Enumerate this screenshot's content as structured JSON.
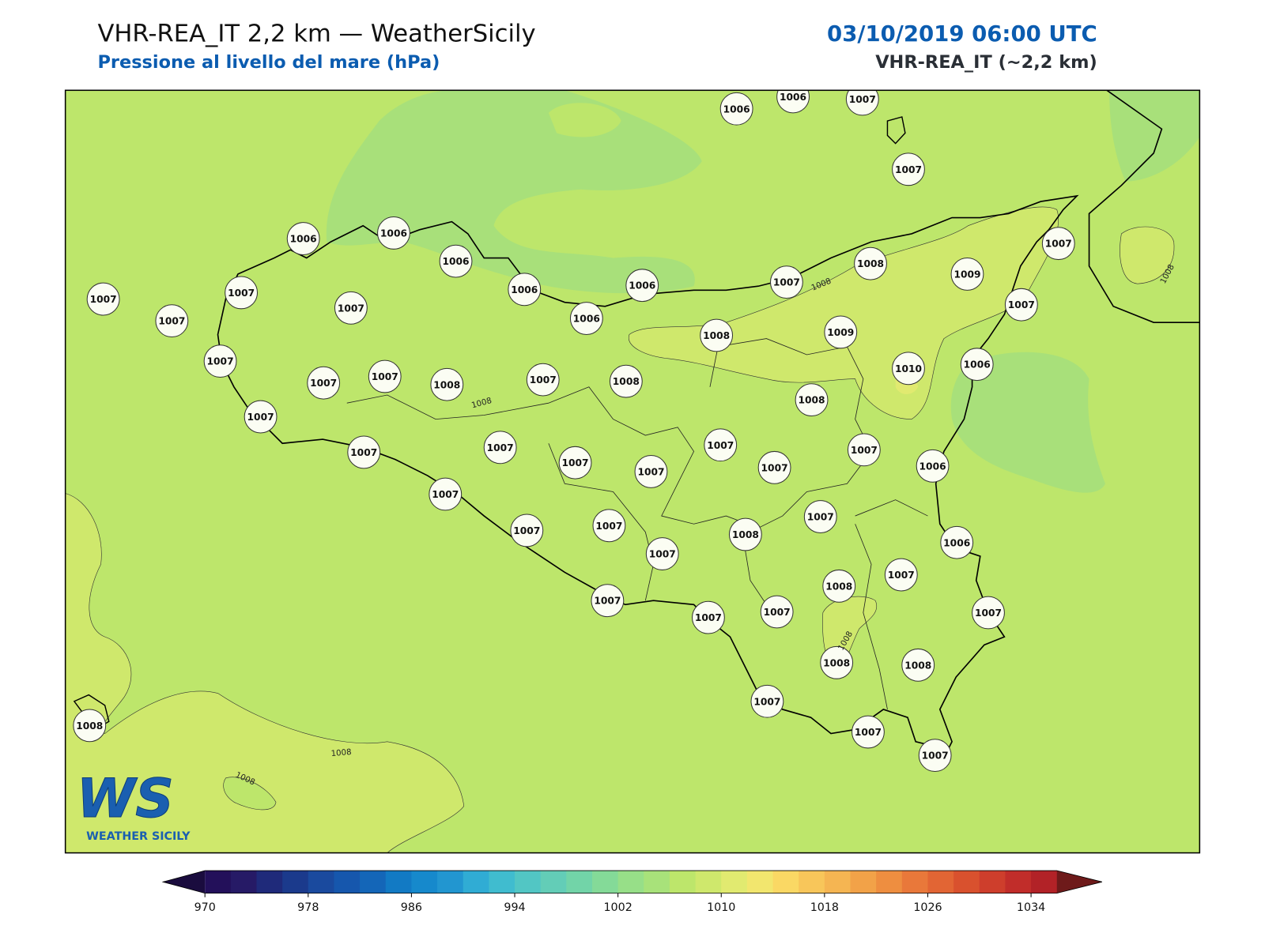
{
  "header": {
    "title": "VHR-REA_IT 2,2 km — WeatherSicily",
    "subtitle": "Pressione al livello del mare (hPa)",
    "datetime": "03/10/2019 06:00 UTC",
    "model": "VHR-REA_IT (~2,2 km)"
  },
  "stations": [
    1006,
    1006,
    1007,
    1007,
    1006,
    1006,
    1006,
    1006,
    1006,
    1006,
    1007,
    1007,
    1007,
    1007,
    1007,
    1007,
    1007,
    1008,
    1007,
    1008,
    1007,
    1007,
    1007,
    1007,
    1007,
    1007,
    1007,
    1008,
    1007,
    1008,
    1009,
    1007,
    1007,
    1009,
    1010,
    1006,
    1008,
    1007,
    1006,
    1007,
    1007,
    1007,
    1007,
    1008,
    1007,
    1006,
    1008,
    1007,
    1007,
    1007,
    1007,
    1007,
    1008,
    1008,
    1007,
    1007,
    1007,
    1008
  ],
  "contour_labels": [
    1008,
    1008,
    1008,
    1008,
    1008,
    1008
  ],
  "colorbar": {
    "range": [
      970,
      1036
    ],
    "ticks": [
      970,
      978,
      986,
      994,
      1002,
      1010,
      1018,
      1026,
      1034
    ],
    "colors": [
      "#23105a",
      "#261a66",
      "#1f2a7a",
      "#1b3a8c",
      "#1a4a9e",
      "#1657ad",
      "#1466b8",
      "#127ac4",
      "#1689cc",
      "#2296d0",
      "#30acd4",
      "#40bccf",
      "#52c6c4",
      "#63cdb7",
      "#72d4a8",
      "#84da98",
      "#97df88",
      "#a8e27a",
      "#bde66b",
      "#cfe86c",
      "#e1ea70",
      "#f2e66e",
      "#fad864",
      "#f8c65a",
      "#f5b552",
      "#f2a248",
      "#ee8e40",
      "#e9783a",
      "#e26534",
      "#d9512e",
      "#ce3e2c",
      "#c12d2a",
      "#b22227"
    ],
    "under_color": "#1a0c3e",
    "over_color": "#6e1a1a"
  },
  "logo": {
    "mark": "WS",
    "text": "WEATHER SICILY"
  }
}
